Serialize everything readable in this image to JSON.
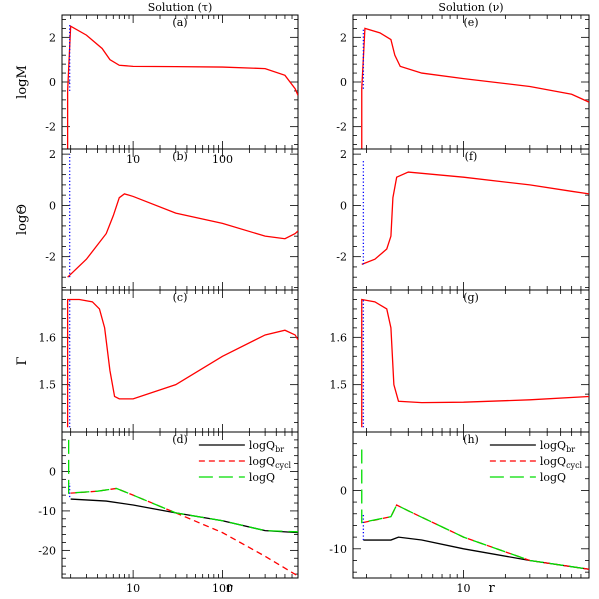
{
  "chart_data": [
    {
      "type": "line",
      "column_title": "Solution (τ)",
      "panel_label": "(a)",
      "ylabel": "logM",
      "x_scale": "log",
      "xlim": [
        1.6,
        700
      ],
      "ylim": [
        -3,
        3
      ],
      "x_ticks": [
        10,
        100
      ],
      "y_ticks": [
        -2,
        0,
        2
      ],
      "series": [
        {
          "color": "#ff0000",
          "style": "solid",
          "points": [
            [
              1.85,
              -3.0
            ],
            [
              1.85,
              -0.4
            ],
            [
              2.0,
              2.5
            ],
            [
              3.0,
              2.1
            ],
            [
              4.5,
              1.5
            ],
            [
              5.5,
              1.0
            ],
            [
              7,
              0.75
            ],
            [
              10,
              0.7
            ],
            [
              30,
              0.69
            ],
            [
              100,
              0.67
            ],
            [
              300,
              0.6
            ],
            [
              500,
              0.3
            ],
            [
              650,
              -0.3
            ],
            [
              700,
              -0.6
            ]
          ]
        },
        {
          "color": "#0000ff",
          "style": "dotted",
          "points": [
            [
              1.95,
              -0.4
            ],
            [
              1.95,
              2.6
            ]
          ]
        }
      ]
    },
    {
      "type": "line",
      "panel_label": "(b)",
      "ylabel": "logΘ",
      "x_scale": "log",
      "xlim": [
        1.6,
        700
      ],
      "ylim": [
        -3.3,
        2.2
      ],
      "y_ticks": [
        -2,
        0,
        2
      ],
      "series": [
        {
          "color": "#ff0000",
          "style": "solid",
          "points": [
            [
              1.85,
              -2.8
            ],
            [
              3,
              -2.1
            ],
            [
              5,
              -1.1
            ],
            [
              6,
              -0.4
            ],
            [
              7,
              0.3
            ],
            [
              8,
              0.45
            ],
            [
              10,
              0.35
            ],
            [
              30,
              -0.3
            ],
            [
              100,
              -0.7
            ],
            [
              300,
              -1.2
            ],
            [
              500,
              -1.3
            ],
            [
              650,
              -1.1
            ],
            [
              700,
              -1.0
            ]
          ]
        },
        {
          "color": "#0000ff",
          "style": "dotted",
          "points": [
            [
              1.95,
              -2.8
            ],
            [
              1.95,
              2.0
            ]
          ]
        }
      ]
    },
    {
      "type": "line",
      "panel_label": "(c)",
      "ylabel": "Γ",
      "x_scale": "log",
      "xlim": [
        1.6,
        700
      ],
      "ylim": [
        1.4,
        1.7
      ],
      "y_ticks": [
        1.5,
        1.6
      ],
      "series": [
        {
          "color": "#ff0000",
          "style": "solid",
          "points": [
            [
              1.85,
              1.41
            ],
            [
              1.85,
              1.68
            ],
            [
              2.5,
              1.68
            ],
            [
              3.5,
              1.675
            ],
            [
              4.2,
              1.66
            ],
            [
              4.8,
              1.62
            ],
            [
              5.5,
              1.53
            ],
            [
              6.2,
              1.475
            ],
            [
              7,
              1.47
            ],
            [
              10,
              1.47
            ],
            [
              30,
              1.5
            ],
            [
              100,
              1.56
            ],
            [
              300,
              1.605
            ],
            [
              500,
              1.615
            ],
            [
              650,
              1.605
            ],
            [
              700,
              1.595
            ]
          ]
        },
        {
          "color": "#0000ff",
          "style": "dotted",
          "points": [
            [
              1.95,
              1.41
            ],
            [
              1.95,
              1.68
            ]
          ]
        }
      ]
    },
    {
      "type": "line",
      "panel_label": "(d)",
      "xlabel": "r",
      "x_scale": "log",
      "xlim": [
        1.6,
        700
      ],
      "ylim": [
        -27,
        10
      ],
      "x_ticks": [
        10,
        100
      ],
      "y_ticks": [
        -20,
        -10,
        0
      ],
      "series": [
        {
          "name": "logQbr",
          "color": "#000000",
          "style": "solid",
          "points": [
            [
              2,
              -7
            ],
            [
              5,
              -7.5
            ],
            [
              10,
              -8.5
            ],
            [
              30,
              -10.5
            ],
            [
              100,
              -12.5
            ],
            [
              300,
              -15
            ],
            [
              700,
              -15.5
            ]
          ]
        },
        {
          "name": "logQcycl",
          "color": "#ff0000",
          "style": "dashed",
          "points": [
            [
              2,
              -5.5
            ],
            [
              4,
              -5.0
            ],
            [
              6.5,
              -4.3
            ],
            [
              10,
              -6
            ],
            [
              30,
              -10.5
            ],
            [
              100,
              -15.5
            ],
            [
              300,
              -21.5
            ],
            [
              700,
              -26.5
            ]
          ]
        },
        {
          "name": "logQ",
          "color": "#00dd00",
          "style": "longdash",
          "points": [
            [
              1.9,
              8
            ],
            [
              1.9,
              -5.5
            ],
            [
              4,
              -5.0
            ],
            [
              6.5,
              -4.3
            ],
            [
              10,
              -6
            ],
            [
              30,
              -10.5
            ],
            [
              100,
              -12.5
            ],
            [
              300,
              -15
            ],
            [
              700,
              -15.3
            ]
          ]
        },
        {
          "color": "#0000ff",
          "style": "dotted",
          "points": [
            [
              1.95,
              -6.5
            ],
            [
              1.95,
              -3
            ]
          ]
        }
      ],
      "legend": [
        {
          "base": "logQ",
          "sub": "br",
          "color": "#000000",
          "style": "solid"
        },
        {
          "base": "logQ",
          "sub": "cycl",
          "color": "#ff0000",
          "style": "dashed"
        },
        {
          "base": "logQ",
          "sub": "",
          "color": "#00dd00",
          "style": "longdash"
        }
      ]
    },
    {
      "type": "line",
      "column_title": "Solution (ν)",
      "panel_label": "(e)",
      "x_scale": "log",
      "xlim": [
        1.6,
        80
      ],
      "ylim": [
        -3,
        3
      ],
      "y_ticks": [
        -2,
        0,
        2
      ],
      "series": [
        {
          "color": "#ff0000",
          "style": "solid",
          "points": [
            [
              1.85,
              -3.0
            ],
            [
              1.85,
              -0.3
            ],
            [
              1.95,
              2.4
            ],
            [
              2.5,
              2.2
            ],
            [
              3.0,
              1.9
            ],
            [
              3.2,
              1.2
            ],
            [
              3.5,
              0.7
            ],
            [
              5,
              0.4
            ],
            [
              10,
              0.15
            ],
            [
              30,
              -0.2
            ],
            [
              60,
              -0.55
            ],
            [
              80,
              -0.9
            ]
          ]
        },
        {
          "color": "#0000ff",
          "style": "dotted",
          "points": [
            [
              1.9,
              -0.3
            ],
            [
              1.9,
              2.4
            ]
          ]
        }
      ]
    },
    {
      "type": "line",
      "panel_label": "(f)",
      "x_scale": "log",
      "xlim": [
        1.6,
        80
      ],
      "ylim": [
        -3.3,
        2.2
      ],
      "y_ticks": [
        -2,
        0,
        2
      ],
      "series": [
        {
          "color": "#ff0000",
          "style": "solid",
          "points": [
            [
              1.85,
              -2.3
            ],
            [
              2.3,
              -2.1
            ],
            [
              2.8,
              -1.7
            ],
            [
              3.0,
              -1.2
            ],
            [
              3.1,
              0.3
            ],
            [
              3.3,
              1.1
            ],
            [
              4,
              1.3
            ],
            [
              10,
              1.1
            ],
            [
              30,
              0.8
            ],
            [
              60,
              0.55
            ],
            [
              80,
              0.45
            ]
          ]
        },
        {
          "color": "#0000ff",
          "style": "dotted",
          "points": [
            [
              1.9,
              -2.3
            ],
            [
              1.9,
              1.8
            ]
          ]
        }
      ]
    },
    {
      "type": "line",
      "panel_label": "(g)",
      "x_scale": "log",
      "xlim": [
        1.6,
        80
      ],
      "ylim": [
        1.4,
        1.7
      ],
      "y_ticks": [
        1.5,
        1.6
      ],
      "series": [
        {
          "color": "#ff0000",
          "style": "solid",
          "points": [
            [
              1.85,
              1.41
            ],
            [
              1.85,
              1.68
            ],
            [
              2.3,
              1.675
            ],
            [
              2.8,
              1.66
            ],
            [
              3.0,
              1.62
            ],
            [
              3.15,
              1.5
            ],
            [
              3.4,
              1.465
            ],
            [
              5,
              1.462
            ],
            [
              10,
              1.463
            ],
            [
              30,
              1.468
            ],
            [
              80,
              1.475
            ]
          ]
        },
        {
          "color": "#0000ff",
          "style": "dotted",
          "points": [
            [
              1.9,
              1.41
            ],
            [
              1.9,
              1.68
            ]
          ]
        }
      ]
    },
    {
      "type": "line",
      "panel_label": "(h)",
      "xlabel": "r",
      "x_scale": "log",
      "xlim": [
        1.6,
        80
      ],
      "ylim": [
        -15,
        10
      ],
      "x_ticks": [
        10
      ],
      "y_ticks": [
        -10,
        0
      ],
      "series": [
        {
          "name": "logQbr",
          "color": "#000000",
          "style": "solid",
          "points": [
            [
              1.9,
              -8.5
            ],
            [
              3,
              -8.5
            ],
            [
              3.4,
              -8.0
            ],
            [
              5,
              -8.5
            ],
            [
              10,
              -10
            ],
            [
              30,
              -12
            ],
            [
              80,
              -13.5
            ]
          ]
        },
        {
          "name": "logQcycl",
          "color": "#ff0000",
          "style": "dashed",
          "points": [
            [
              1.9,
              -5.5
            ],
            [
              3,
              -4.5
            ],
            [
              3.3,
              -2.5
            ],
            [
              4,
              -3.5
            ],
            [
              10,
              -8
            ],
            [
              30,
              -12
            ],
            [
              80,
              -13.5
            ]
          ]
        },
        {
          "name": "logQ",
          "color": "#00dd00",
          "style": "longdash",
          "points": [
            [
              1.85,
              7
            ],
            [
              1.85,
              -5.5
            ],
            [
              3,
              -4.5
            ],
            [
              3.3,
              -2.5
            ],
            [
              4,
              -3.5
            ],
            [
              10,
              -8
            ],
            [
              30,
              -12
            ],
            [
              80,
              -13.5
            ]
          ]
        },
        {
          "color": "#0000ff",
          "style": "dotted",
          "points": [
            [
              1.9,
              -8.5
            ],
            [
              1.9,
              -4
            ]
          ]
        }
      ],
      "legend": [
        {
          "base": "logQ",
          "sub": "br",
          "color": "#000000",
          "style": "solid"
        },
        {
          "base": "logQ",
          "sub": "cycl",
          "color": "#ff0000",
          "style": "dashed"
        },
        {
          "base": "logQ",
          "sub": "",
          "color": "#00dd00",
          "style": "longdash"
        }
      ]
    }
  ]
}
